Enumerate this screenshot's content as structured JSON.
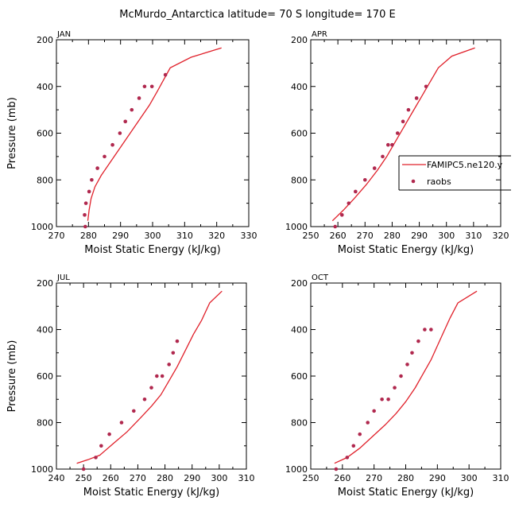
{
  "page_title": "McMurdo_Antarctica  latitude= 70 S longitude= 170 E",
  "colors": {
    "model": "#e0202a",
    "obs": "#b0284e"
  },
  "legend": {
    "model_label": "FAMIPC5.ne120.y",
    "obs_label": "raobs"
  },
  "chart_data": [
    {
      "type": "line",
      "title": "JAN",
      "xlabel": "Moist Static Energy (kJ/kg)",
      "ylabel": "Pressure (mb)",
      "xlim": [
        270,
        330
      ],
      "ylim": [
        1000,
        200
      ],
      "xticks": [
        "270",
        "280",
        "290",
        "300",
        "310",
        "320",
        "330"
      ],
      "yticks": [
        "200",
        "400",
        "600",
        "800",
        "1000"
      ],
      "series": [
        {
          "name": "FAMIPC5.ne120.y",
          "kind": "line",
          "x": [
            279.8,
            280.2,
            280.8,
            282.0,
            284.0,
            287.0,
            290.0,
            293.0,
            296.0,
            299.0,
            301.5,
            303.5,
            305.5,
            312.0,
            321.5
          ],
          "y": [
            975,
            930,
            880,
            830,
            780,
            720,
            660,
            600,
            540,
            480,
            420,
            370,
            320,
            275,
            235
          ]
        },
        {
          "name": "raobs",
          "kind": "scatter",
          "x": [
            279.0,
            278.8,
            279.2,
            280.2,
            281.0,
            282.8,
            285.0,
            287.5,
            289.8,
            291.5,
            293.5,
            295.8,
            297.5,
            299.8,
            304.0
          ],
          "y": [
            1000,
            950,
            900,
            850,
            800,
            750,
            700,
            650,
            600,
            550,
            500,
            450,
            400,
            400,
            350
          ]
        }
      ]
    },
    {
      "type": "line",
      "title": "APR",
      "xlabel": "Moist Static Energy (kJ/kg)",
      "ylabel": "",
      "xlim": [
        250,
        320
      ],
      "ylim": [
        1000,
        200
      ],
      "xticks": [
        "250",
        "260",
        "270",
        "280",
        "290",
        "300",
        "310",
        "320"
      ],
      "yticks": [
        "200",
        "400",
        "600",
        "800",
        "1000"
      ],
      "legend": "right",
      "series": [
        {
          "name": "FAMIPC5.ne120.y",
          "kind": "line",
          "x": [
            258.0,
            262.0,
            266.0,
            270.5,
            274.5,
            278.0,
            281.0,
            284.0,
            287.0,
            290.0,
            293.0,
            297.0,
            302.0,
            310.5
          ],
          "y": [
            975,
            930,
            880,
            820,
            760,
            700,
            640,
            580,
            520,
            460,
            400,
            320,
            270,
            235
          ]
        },
        {
          "name": "raobs",
          "kind": "scatter",
          "x": [
            259.0,
            261.5,
            264.0,
            266.5,
            270.0,
            273.5,
            276.5,
            278.5,
            280.0,
            282.0,
            284.0,
            286.0,
            289.0,
            292.5
          ],
          "y": [
            1000,
            950,
            900,
            850,
            800,
            750,
            700,
            650,
            650,
            600,
            550,
            500,
            450,
            400
          ]
        }
      ]
    },
    {
      "type": "line",
      "title": "JUL",
      "xlabel": "Moist Static Energy (kJ/kg)",
      "ylabel": "Pressure (mb)",
      "xlim": [
        240,
        310
      ],
      "ylim": [
        1000,
        200
      ],
      "xticks": [
        "240",
        "250",
        "260",
        "270",
        "280",
        "290",
        "300",
        "310"
      ],
      "yticks": [
        "200",
        "400",
        "600",
        "800",
        "1000"
      ],
      "series": [
        {
          "name": "FAMIPC5.ne120.y",
          "kind": "line",
          "x": [
            247.5,
            251.5,
            256.0,
            261.0,
            266.0,
            271.0,
            275.0,
            278.5,
            281.5,
            284.5,
            287.5,
            290.5,
            293.5,
            296.5,
            301.0
          ],
          "y": [
            975,
            960,
            940,
            890,
            840,
            780,
            730,
            680,
            620,
            560,
            490,
            420,
            360,
            285,
            235
          ]
        },
        {
          "name": "raobs",
          "kind": "scatter",
          "x": [
            250.0,
            254.5,
            256.5,
            259.5,
            264.0,
            268.5,
            272.5,
            275.0,
            277.0,
            279.0,
            281.5,
            283.0,
            284.5
          ],
          "y": [
            1000,
            950,
            900,
            850,
            800,
            750,
            700,
            650,
            600,
            600,
            550,
            500,
            450
          ]
        }
      ]
    },
    {
      "type": "line",
      "title": "OCT",
      "xlabel": "Moist Static Energy (kJ/kg)",
      "ylabel": "",
      "xlim": [
        250,
        310
      ],
      "ylim": [
        1000,
        200
      ],
      "xticks": [
        "250",
        "260",
        "270",
        "280",
        "290",
        "300",
        "310"
      ],
      "yticks": [
        "200",
        "400",
        "600",
        "800",
        "1000"
      ],
      "series": [
        {
          "name": "FAMIPC5.ne120.y",
          "kind": "line",
          "x": [
            257.5,
            261.5,
            265.5,
            269.5,
            273.5,
            277.0,
            280.0,
            283.0,
            285.5,
            288.0,
            290.0,
            292.0,
            294.0,
            296.5,
            302.5
          ],
          "y": [
            975,
            950,
            910,
            860,
            810,
            760,
            710,
            650,
            590,
            530,
            470,
            410,
            350,
            285,
            235
          ]
        },
        {
          "name": "raobs",
          "kind": "scatter",
          "x": [
            258.0,
            261.5,
            263.5,
            265.5,
            268.0,
            270.0,
            272.5,
            274.5,
            276.5,
            278.5,
            280.5,
            282.0,
            284.0,
            286.0,
            288.0
          ],
          "y": [
            1000,
            950,
            900,
            850,
            800,
            750,
            700,
            700,
            650,
            600,
            550,
            500,
            450,
            400,
            400
          ]
        }
      ]
    }
  ]
}
